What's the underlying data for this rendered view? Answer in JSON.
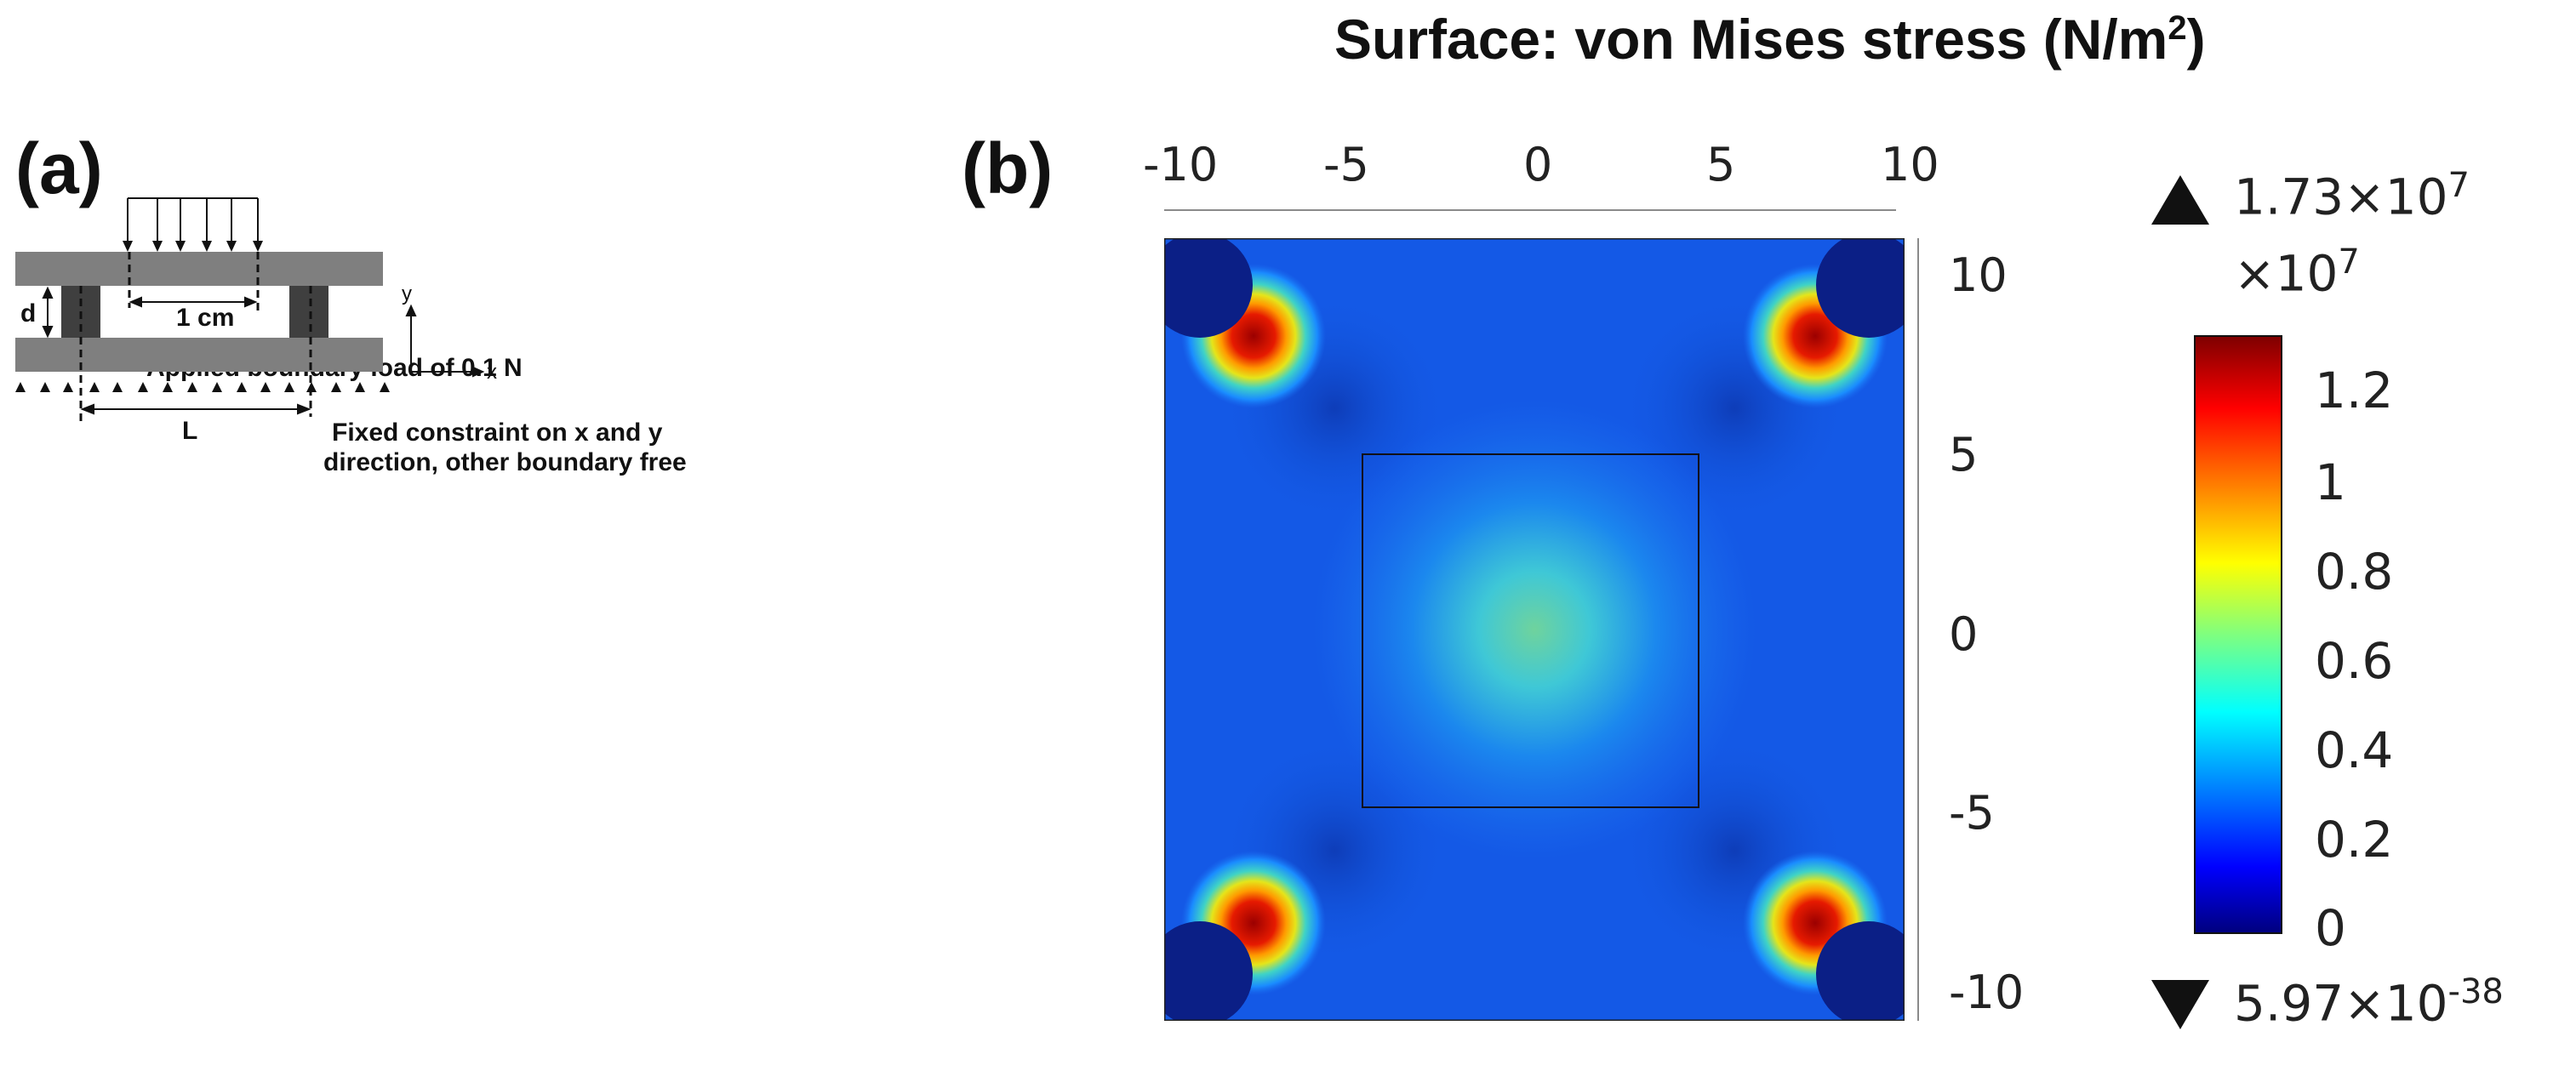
{
  "panel_a": {
    "label": "(a)",
    "load_text": "Applied boundary load of 0.1 N",
    "gap_label": "1 cm",
    "thickness_label": "d",
    "span_label": "L",
    "axis_y": "y",
    "axis_x": "x",
    "constraint_line1": "Fixed constraint on x and y",
    "constraint_line2": "direction, other boundary free"
  },
  "panel_b": {
    "label": "(b)",
    "title_prefix": "Surface: von Mises stress (N/m",
    "title_sup": "2",
    "title_suffix": ")",
    "x_ticks": [
      "-10",
      "-5",
      "0",
      "5",
      "10"
    ],
    "y_ticks": [
      "10",
      "5",
      "0",
      "-5",
      "-10"
    ],
    "colorbar": {
      "max_text": "1.73×10",
      "max_exp": "7",
      "multiplier": "×10",
      "multiplier_exp": "7",
      "ticks": [
        "1.2",
        "1",
        "0.8",
        "0.6",
        "0.4",
        "0.2",
        "0"
      ],
      "min_text": "5.97×10",
      "min_exp": "-38"
    }
  },
  "chart_data": {
    "type": "heatmap",
    "title": "Surface: von Mises stress (N/m²)",
    "x_ticks": [
      -10,
      -5,
      0,
      5,
      10
    ],
    "y_ticks": [
      10,
      5,
      0,
      -5,
      -10
    ],
    "xlim": [
      -10,
      10
    ],
    "ylim": [
      -10,
      10
    ],
    "colorbar_range": [
      0,
      1.3
    ],
    "colorbar_ticks": [
      0,
      0.2,
      0.4,
      0.6,
      0.8,
      1,
      1.2
    ],
    "colorbar_scale": "×10^7",
    "max_value": "1.73×10^7",
    "min_value": "5.97×10^-38",
    "colormap": "jet"
  }
}
